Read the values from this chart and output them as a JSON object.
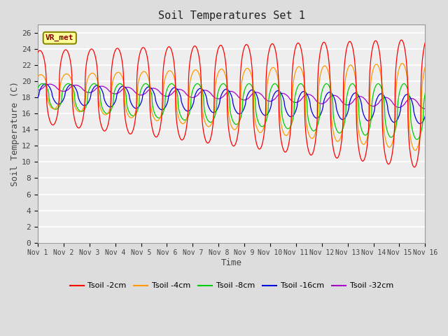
{
  "title": "Soil Temperatures Set 1",
  "xlabel": "Time",
  "ylabel": "Soil Temperature (C)",
  "ylim": [
    0,
    27
  ],
  "yticks": [
    0,
    2,
    4,
    6,
    8,
    10,
    12,
    14,
    16,
    18,
    20,
    22,
    24,
    26
  ],
  "xtick_labels": [
    "Nov 1",
    "Nov 2",
    "Nov 3",
    "Nov 4",
    "Nov 5",
    "Nov 6",
    "Nov 7",
    "Nov 8",
    "Nov 9",
    "Nov 10",
    "Nov 11",
    "Nov 12",
    "Nov 13",
    "Nov 14",
    "Nov 15",
    "Nov 16"
  ],
  "line_colors": {
    "Tsoil -2cm": "#ff0000",
    "Tsoil -4cm": "#ff9900",
    "Tsoil -8cm": "#00cc00",
    "Tsoil -16cm": "#0000dd",
    "Tsoil -32cm": "#aa00cc"
  },
  "annotation_text": "VR_met",
  "bg_color": "#dddddd",
  "plot_bg_color": "#eeeeee",
  "grid_color": "#ffffff",
  "n_days": 15,
  "points_per_day": 144
}
